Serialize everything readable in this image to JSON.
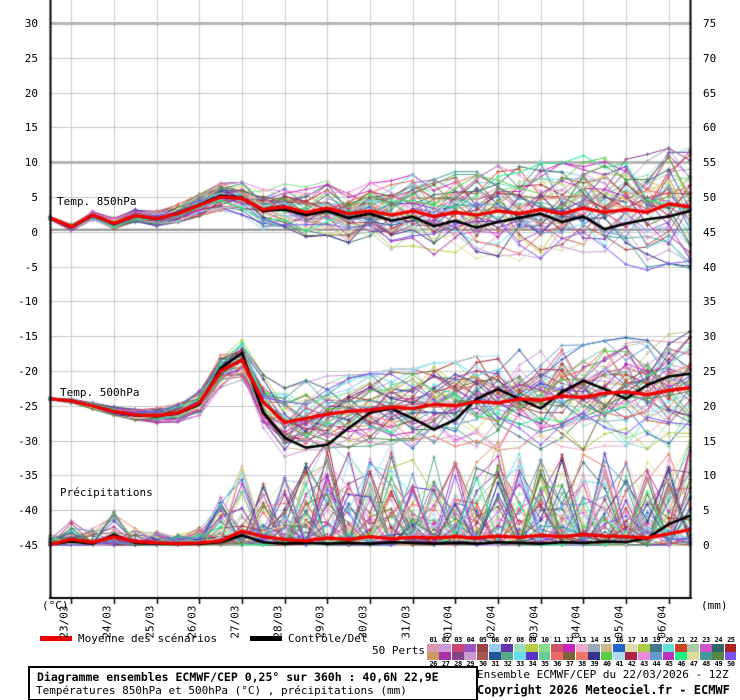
{
  "legend": {
    "mean_label": "Moyenne des scénarios",
    "control_label": "Contrôle/Det",
    "perts_label": "50 Perts."
  },
  "footer": {
    "box_line1": "Diagramme ensembles ECMWF/CEP 0,25° sur 360h : 40,6N 22,9E",
    "box_line2": "Températures 850hPa et 500hPa (°C) , précipitations (mm)",
    "right_line1": "Ensemble ECMWF/CEP du 22/03/2026 - 12Z",
    "right_line2": "Copyright 2026 Meteociel.fr - ECMWF"
  },
  "chart_data": {
    "type": "line",
    "title": "Diagramme ensembles ECMWF/CEP 0,25° sur 360h : 40,6N 22,9E",
    "x_hours": [
      0,
      12,
      24,
      36,
      48,
      60,
      72,
      84,
      96,
      108,
      120,
      132,
      144,
      156,
      168,
      180,
      192,
      204,
      216,
      228,
      240,
      252,
      264,
      276,
      288,
      300,
      312,
      324,
      336,
      348,
      360
    ],
    "x_tick_labels": [
      "23/03",
      "24/03",
      "25/03",
      "26/03",
      "27/03",
      "28/03",
      "29/03",
      "30/03",
      "31/03",
      "01/04",
      "02/04",
      "03/04",
      "04/04",
      "05/04",
      "06/04"
    ],
    "left_axis": {
      "unit": "(°C)",
      "ticks": [
        30,
        25,
        20,
        15,
        10,
        5,
        0,
        -5,
        -10,
        -15,
        -20,
        -25,
        -30,
        -35,
        -40,
        -45
      ],
      "range": [
        -52.6,
        33.3
      ]
    },
    "right_axis": {
      "unit": "(mm)",
      "ticks": [
        75,
        70,
        65,
        60,
        55,
        50,
        45,
        40,
        35,
        30,
        25,
        20,
        15,
        10,
        5,
        0
      ],
      "range": [
        0,
        80
      ]
    },
    "grid": {
      "color": "#c8c8c8",
      "emph_color": "#b4b4b4",
      "zero_line_color": "#8c8c8c",
      "emph_left_values": [
        30,
        10
      ],
      "zero_left_value": 0
    },
    "panels": {
      "temp850": {
        "label": "Temp. 850hPa",
        "mean": [
          2.0,
          0.7,
          2.4,
          1.2,
          2.3,
          1.9,
          2.6,
          3.8,
          5.0,
          4.8,
          3.2,
          3.6,
          2.8,
          3.4,
          2.6,
          3.0,
          2.4,
          3.0,
          2.2,
          2.8,
          2.4,
          3.0,
          2.6,
          3.2,
          2.6,
          3.4,
          2.8,
          3.2,
          2.8,
          4.0,
          3.6
        ],
        "control": [
          2.0,
          0.6,
          2.4,
          1.1,
          2.3,
          1.8,
          2.7,
          3.9,
          5.2,
          4.9,
          3.0,
          3.2,
          2.4,
          3.0,
          2.0,
          2.6,
          1.6,
          2.2,
          0.8,
          1.6,
          0.6,
          1.4,
          2.0,
          2.6,
          1.4,
          2.2,
          0.4,
          1.2,
          1.8,
          2.2,
          3.0
        ],
        "spread": [
          0.3,
          0.4,
          0.5,
          0.6,
          0.7,
          0.8,
          1.0,
          1.2,
          1.5,
          1.8,
          2.2,
          2.5,
          2.8,
          3.0,
          3.2,
          3.5,
          3.8,
          4.0,
          4.2,
          4.5,
          4.8,
          5.0,
          5.2,
          5.4,
          5.6,
          5.8,
          6.0,
          6.2,
          6.4,
          6.6,
          6.8
        ],
        "member_clip": [
          -5.5,
          12.0
        ]
      },
      "temp500": {
        "label": "Temp. 500hPa",
        "mean": [
          -24.0,
          -24.3,
          -25.0,
          -25.8,
          -26.3,
          -26.4,
          -26.0,
          -24.6,
          -20.0,
          -18.4,
          -24.5,
          -27.4,
          -26.8,
          -26.2,
          -25.8,
          -25.6,
          -25.2,
          -25.4,
          -24.8,
          -25.0,
          -24.4,
          -24.6,
          -24.0,
          -24.2,
          -23.6,
          -23.8,
          -23.2,
          -23.0,
          -23.4,
          -22.8,
          -22.4
        ],
        "control": [
          -24.0,
          -24.3,
          -25.0,
          -25.9,
          -26.4,
          -26.5,
          -26.1,
          -24.8,
          -19.6,
          -17.4,
          -26.0,
          -29.6,
          -31.0,
          -30.6,
          -28.2,
          -26.0,
          -25.4,
          -26.8,
          -28.4,
          -27.0,
          -24.0,
          -22.6,
          -24.0,
          -25.4,
          -23.0,
          -21.4,
          -22.6,
          -24.0,
          -22.0,
          -20.8,
          -20.4
        ],
        "spread": [
          0.2,
          0.3,
          0.4,
          0.5,
          0.6,
          0.8,
          1.0,
          1.4,
          1.8,
          2.2,
          3.0,
          3.8,
          4.2,
          4.2,
          4.0,
          4.0,
          4.2,
          4.4,
          4.6,
          4.8,
          5.0,
          5.2,
          5.4,
          5.4,
          5.6,
          5.8,
          5.8,
          6.0,
          6.0,
          6.2,
          6.2
        ],
        "member_clip": [
          -34.0,
          -11.2
        ]
      },
      "precip": {
        "label": "Précipitations",
        "mean": [
          0.1,
          0.8,
          0.4,
          1.2,
          0.5,
          0.3,
          0.2,
          0.3,
          0.6,
          2.0,
          1.2,
          0.8,
          0.6,
          1.0,
          0.8,
          1.2,
          0.9,
          1.1,
          1.0,
          1.2,
          1.0,
          1.3,
          1.1,
          1.4,
          1.2,
          1.5,
          1.3,
          1.2,
          1.0,
          1.6,
          2.2
        ],
        "control": [
          0.1,
          0.5,
          0.2,
          1.5,
          0.3,
          0.2,
          0.1,
          0.2,
          0.4,
          1.4,
          0.4,
          0.2,
          0.3,
          0.2,
          0.3,
          0.2,
          0.4,
          0.3,
          0.2,
          0.3,
          0.2,
          0.4,
          0.3,
          0.2,
          0.4,
          0.3,
          0.5,
          0.4,
          1.0,
          3.0,
          4.2
        ],
        "spike_envelope": [
          0.6,
          1.5,
          1.0,
          2.0,
          1.0,
          0.8,
          0.6,
          1.2,
          3.0,
          5.0,
          4.0,
          4.5,
          5.5,
          6.5,
          5.5,
          5.5,
          6.5,
          6.5,
          5.5,
          5.5,
          5.5,
          6.5,
          5.5,
          5.5,
          5.5,
          5.5,
          5.5,
          5.0,
          5.0,
          5.5,
          6.5
        ],
        "member_clip": [
          0,
          15.0
        ]
      }
    },
    "series_styles": {
      "mean_color": "#ee0000",
      "control_color": "#000000"
    },
    "members": {
      "count": 50,
      "numbers": [
        "01",
        "02",
        "03",
        "04",
        "05",
        "06",
        "07",
        "08",
        "09",
        "10",
        "11",
        "12",
        "13",
        "14",
        "15",
        "16",
        "17",
        "18",
        "19",
        "20",
        "21",
        "22",
        "23",
        "24",
        "25",
        "26",
        "27",
        "28",
        "29",
        "30",
        "31",
        "32",
        "33",
        "34",
        "35",
        "36",
        "37",
        "38",
        "39",
        "40",
        "41",
        "42",
        "43",
        "44",
        "45",
        "46",
        "47",
        "48",
        "49",
        "50"
      ],
      "colors": [
        "#dd99aa",
        "#cc99dd",
        "#cc4477",
        "#9955bb",
        "#994444",
        "#99ccee",
        "#6633aa",
        "#99ddbb",
        "#bbcc44",
        "#88dd88",
        "#cc5566",
        "#cc22bb",
        "#eeaacc",
        "#99aabb",
        "#ccbb88",
        "#2266cc",
        "#ddddaa",
        "#aacc44",
        "#447788",
        "#66dddd",
        "#cc4422",
        "#aaccaa",
        "#cc55cc",
        "#336666",
        "#aa2222",
        "#cc9966",
        "#aa33aa",
        "#884488",
        "#cc99cc",
        "#aa5555",
        "#225599",
        "#55aa88",
        "#66ddee",
        "#5533cc",
        "#66cc99",
        "#ee6666",
        "#776633",
        "#ee7766",
        "#333388",
        "#55cc44",
        "#aaddee",
        "#aa2244",
        "#ee88dd",
        "#6699cc",
        "#bb33bb",
        "#22ee88",
        "#dddd99",
        "#449999",
        "#558844",
        "#7755ee"
      ]
    }
  }
}
